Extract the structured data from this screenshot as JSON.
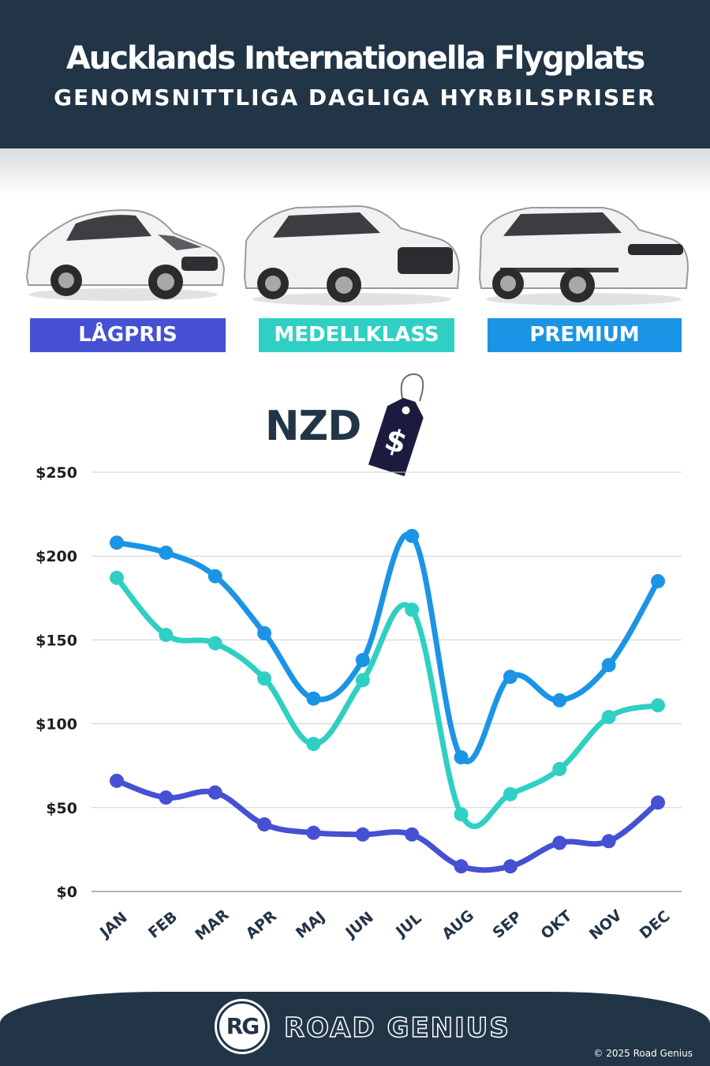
{
  "header": {
    "title": "Aucklands Internationella Flygplats",
    "subtitle": "GENOMSNITTLIGA DAGLIGA HYRBILSPRISER"
  },
  "car_categories": [
    {
      "label": "LÅGPRIS",
      "color": "#4550d2"
    },
    {
      "label": "MEDELLKLASS",
      "color": "#2fd0c3"
    },
    {
      "label": "PREMIUM",
      "color": "#1c94e6"
    }
  ],
  "currency": {
    "label": "NZD",
    "tag_symbol": "$"
  },
  "chart_data": {
    "type": "line",
    "categories": [
      "JAN",
      "FEB",
      "MAR",
      "APR",
      "MAJ",
      "JUN",
      "JUL",
      "AUG",
      "SEP",
      "OKT",
      "NOV",
      "DEC"
    ],
    "y_ticks": [
      "$0",
      "$50",
      "$100",
      "$150",
      "$200",
      "$250"
    ],
    "ylim": [
      0,
      250
    ],
    "grid": true,
    "series": [
      {
        "name": "PREMIUM",
        "color": "#1c94e6",
        "values": [
          208,
          202,
          188,
          154,
          115,
          138,
          212,
          80,
          128,
          114,
          135,
          185
        ]
      },
      {
        "name": "MEDELLKLASS",
        "color": "#2fd0c3",
        "values": [
          187,
          153,
          148,
          127,
          88,
          126,
          168,
          46,
          58,
          73,
          104,
          111
        ]
      },
      {
        "name": "LÅGPRIS",
        "color": "#4550d2",
        "values": [
          66,
          56,
          59,
          40,
          35,
          34,
          34,
          15,
          15,
          29,
          30,
          53
        ]
      }
    ]
  },
  "footer": {
    "logo_mark": "RG",
    "brand": "ROAD GENIUS",
    "copyright": "© 2025 Road Genius"
  }
}
